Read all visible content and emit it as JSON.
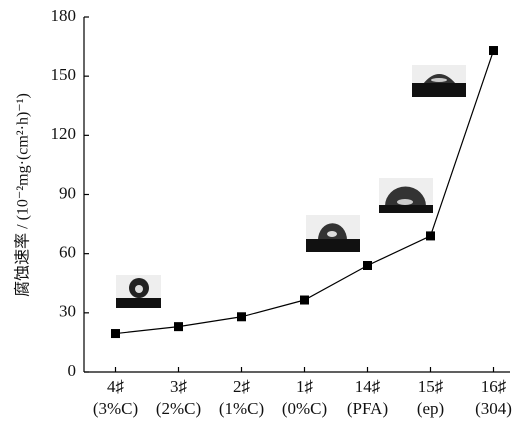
{
  "chart_data": {
    "type": "line",
    "y_label": "腐蚀速率 / (10⁻²mg·(cm²·h)⁻¹)",
    "categories": [
      "4♯(3%C)",
      "3♯(2%C)",
      "2♯(1%C)",
      "1♯(0%C)",
      "14♯(PFA)",
      "15♯(ep)",
      "16♯(304)"
    ],
    "values": [
      19.5,
      23,
      28,
      36.5,
      54,
      69,
      163
    ],
    "color": "#000000",
    "ylim": [
      0,
      180
    ],
    "yticks": [
      0,
      30,
      60,
      90,
      120,
      150,
      180
    ]
  }
}
